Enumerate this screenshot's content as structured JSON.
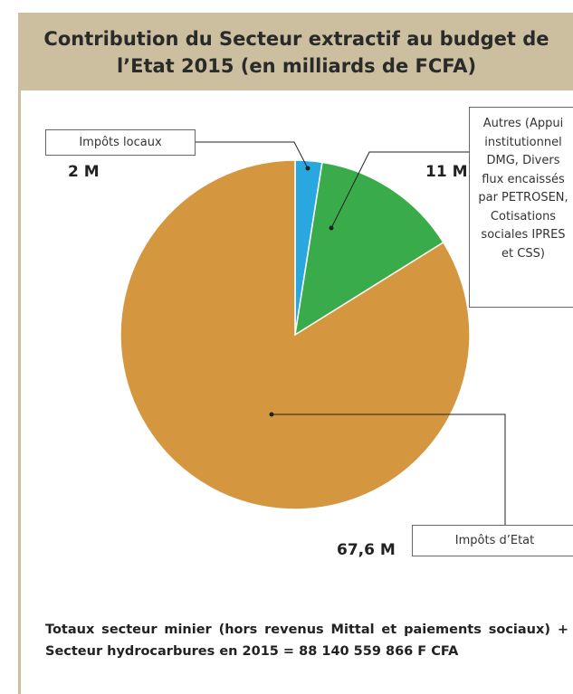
{
  "chart_data": {
    "type": "pie",
    "title": "Contribution du Secteur extractif au budget de l’Etat 2015 (en milliards de FCFA)",
    "categories": [
      "Impôts locaux",
      "Autres (Appui institutionnel DMG, Divers flux encaissés par PETROSEN, Cotisations sociales IPRES et CSS)",
      "Impôts d’Etat"
    ],
    "values": [
      2,
      11,
      67.6
    ],
    "value_labels": [
      "2 M",
      "11 M",
      "67,6 M"
    ],
    "colors": [
      "#29a8e0",
      "#3aab4b",
      "#d4963f"
    ],
    "note": "Totaux secteur minier (hors revenus Mittal et paiements sociaux) + Secteur hydrocarbures en 2015 = 88 140 559 866 F CFA"
  }
}
